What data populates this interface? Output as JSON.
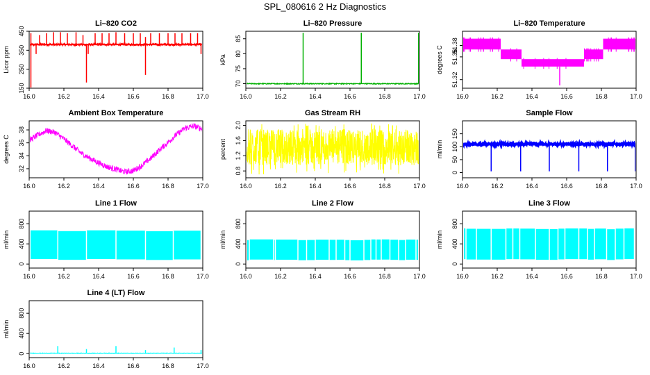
{
  "figure": {
    "title": "SPL_080616  2 Hz Diagnostics"
  },
  "chart_data": [
    {
      "type": "line",
      "title": "Li–820 CO2",
      "ylabel": "Licor ppm",
      "xlim": [
        16.0,
        17.0
      ],
      "ylim": [
        150,
        450
      ],
      "xticks": [
        "16.0",
        "16.2",
        "16.4",
        "16.6",
        "16.8",
        "17.0"
      ],
      "xtick_values": [
        16.0,
        16.2,
        16.4,
        16.6,
        16.8,
        17.0
      ],
      "yticks": [
        "150",
        "250",
        "350",
        "450"
      ],
      "ytick_values": [
        150,
        250,
        350,
        450
      ],
      "series": [
        {
          "color": "#ff0000",
          "baseline": 380,
          "noise": 6,
          "spikes": [
            [
              16.01,
              150
            ],
            [
              16.01,
              440
            ],
            [
              16.04,
              330
            ],
            [
              16.06,
              430
            ],
            [
              16.1,
              440
            ],
            [
              16.14,
              445
            ],
            [
              16.18,
              445
            ],
            [
              16.22,
              440
            ],
            [
              16.27,
              445
            ],
            [
              16.31,
              430
            ],
            [
              16.33,
              180
            ],
            [
              16.34,
              330
            ],
            [
              16.38,
              440
            ],
            [
              16.42,
              440
            ],
            [
              16.46,
              440
            ],
            [
              16.5,
              445
            ],
            [
              16.55,
              440
            ],
            [
              16.6,
              440
            ],
            [
              16.64,
              440
            ],
            [
              16.67,
              420
            ],
            [
              16.67,
              220
            ],
            [
              16.7,
              440
            ],
            [
              16.75,
              440
            ],
            [
              16.8,
              440
            ],
            [
              16.84,
              440
            ],
            [
              16.88,
              440
            ],
            [
              16.93,
              440
            ],
            [
              16.97,
              440
            ],
            [
              16.99,
              330
            ]
          ]
        }
      ]
    },
    {
      "type": "line",
      "title": "Li–820 Pressure",
      "ylabel": "kPa",
      "xlim": [
        16.0,
        17.0
      ],
      "ylim": [
        68.5,
        87.5
      ],
      "xticks": [
        "16.0",
        "16.2",
        "16.4",
        "16.6",
        "16.8",
        "17.0"
      ],
      "xtick_values": [
        16.0,
        16.2,
        16.4,
        16.6,
        16.8,
        17.0
      ],
      "yticks": [
        "70",
        "75",
        "80",
        "85"
      ],
      "ytick_values": [
        70,
        75,
        80,
        85
      ],
      "series": [
        {
          "color": "#00b000",
          "baseline": 70.0,
          "noise": 0.15,
          "spikes": [
            [
              16.0,
              86.0
            ],
            [
              16.33,
              87.0
            ],
            [
              16.665,
              87.0
            ],
            [
              16.665,
              86.5
            ],
            [
              16.995,
              87.0
            ]
          ]
        }
      ]
    },
    {
      "type": "line",
      "title": "Li–820 Temperature",
      "ylabel": "degrees C",
      "xlim": [
        16.0,
        17.0
      ],
      "ylim": [
        51.305,
        51.405
      ],
      "xticks": [
        "16.0",
        "16.2",
        "16.4",
        "16.6",
        "16.8",
        "17.0"
      ],
      "xtick_values": [
        16.0,
        16.2,
        16.4,
        16.6,
        16.8,
        17.0
      ],
      "yticks": [
        "51.32",
        "51.36",
        "51.38"
      ],
      "ytick_values": [
        51.32,
        51.36,
        51.38
      ],
      "series": [
        {
          "color": "#ff00ff",
          "bands": [
            [
              16.0,
              16.22,
              51.373,
              51.392
            ],
            [
              16.22,
              16.34,
              51.356,
              51.373
            ],
            [
              16.34,
              16.7,
              51.343,
              51.356
            ],
            [
              16.7,
              16.81,
              51.356,
              51.373
            ],
            [
              16.81,
              17.0,
              51.373,
              51.392
            ]
          ],
          "spikes": [
            [
              16.56,
              51.31
            ]
          ]
        }
      ]
    },
    {
      "type": "line",
      "title": "Ambient Box Temperature",
      "ylabel": "degrees C",
      "xlim": [
        16.0,
        17.0
      ],
      "ylim": [
        30.6,
        39.4
      ],
      "xticks": [
        "16.0",
        "16.2",
        "16.4",
        "16.6",
        "16.8",
        "17.0"
      ],
      "xtick_values": [
        16.0,
        16.2,
        16.4,
        16.6,
        16.8,
        17.0
      ],
      "yticks": [
        "32",
        "34",
        "36",
        "38"
      ],
      "ytick_values": [
        32,
        34,
        36,
        38
      ],
      "series": [
        {
          "color": "#ff00ff",
          "noise": 0.45,
          "points": [
            [
              16.0,
              36.4
            ],
            [
              16.05,
              37.2
            ],
            [
              16.1,
              37.9
            ],
            [
              16.15,
              37.6
            ],
            [
              16.2,
              36.6
            ],
            [
              16.25,
              35.5
            ],
            [
              16.3,
              34.4
            ],
            [
              16.35,
              33.6
            ],
            [
              16.4,
              32.9
            ],
            [
              16.45,
              32.3
            ],
            [
              16.5,
              31.9
            ],
            [
              16.55,
              31.5
            ],
            [
              16.6,
              31.7
            ],
            [
              16.65,
              32.5
            ],
            [
              16.7,
              33.6
            ],
            [
              16.75,
              34.9
            ],
            [
              16.8,
              36.1
            ],
            [
              16.85,
              37.3
            ],
            [
              16.9,
              38.3
            ],
            [
              16.95,
              38.6
            ],
            [
              17.0,
              38.1
            ]
          ]
        }
      ]
    },
    {
      "type": "line",
      "title": "Gas Stream RH",
      "ylabel": "percent",
      "xlim": [
        16.0,
        17.0
      ],
      "ylim": [
        0.62,
        2.12
      ],
      "xticks": [
        "16.0",
        "16.2",
        "16.4",
        "16.6",
        "16.8",
        "17.0"
      ],
      "xtick_values": [
        16.0,
        16.2,
        16.4,
        16.6,
        16.8,
        17.0
      ],
      "yticks": [
        "0.8",
        "1.2",
        "1.6",
        "2.0"
      ],
      "ytick_values": [
        0.8,
        1.2,
        1.6,
        2.0
      ],
      "series": [
        {
          "color": "#ffff00",
          "noise_band": [
            0.95,
            1.9
          ],
          "extremes": [
            0.7,
            2.05
          ]
        }
      ]
    },
    {
      "type": "line",
      "title": "Sample Flow",
      "ylabel": "ml/min",
      "xlim": [
        16.0,
        17.0
      ],
      "ylim": [
        -20,
        200
      ],
      "xticks": [
        "16.0",
        "16.2",
        "16.4",
        "16.6",
        "16.8",
        "17.0"
      ],
      "xtick_values": [
        16.0,
        16.2,
        16.4,
        16.6,
        16.8,
        17.0
      ],
      "yticks": [
        "0",
        "50",
        "100",
        "150"
      ],
      "ytick_values": [
        0,
        50,
        100,
        150
      ],
      "series": [
        {
          "color": "#0000ff",
          "baseline": 110,
          "noise": 6,
          "spikes": [
            [
              16.0,
              80
            ],
            [
              16.165,
              5
            ],
            [
              16.335,
              5
            ],
            [
              16.5,
              5
            ],
            [
              16.67,
              5
            ],
            [
              16.835,
              5
            ],
            [
              16.995,
              5
            ]
          ]
        }
      ]
    },
    {
      "type": "line",
      "title": "Line 1 Flow",
      "ylabel": "ml/min",
      "xlim": [
        16.0,
        17.0
      ],
      "ylim": [
        -80,
        1050
      ],
      "xticks": [
        "16.0",
        "16.2",
        "16.4",
        "16.6",
        "16.8",
        "17.0"
      ],
      "xtick_values": [
        16.0,
        16.2,
        16.4,
        16.6,
        16.8,
        17.0
      ],
      "yticks": [
        "0",
        "400",
        "800"
      ],
      "ytick_values": [
        0,
        400,
        800
      ],
      "series": [
        {
          "color": "#00ffff",
          "band": [
            90,
            660
          ],
          "gaps": [
            16.165,
            16.33,
            16.5,
            16.67,
            16.83,
            16.99
          ]
        }
      ]
    },
    {
      "type": "line",
      "title": "Line 2 Flow",
      "ylabel": "ml/min",
      "xlim": [
        16.0,
        17.0
      ],
      "ylim": [
        -80,
        1050
      ],
      "xticks": [
        "16.0",
        "16.2",
        "16.4",
        "16.6",
        "16.8",
        "17.0"
      ],
      "xtick_values": [
        16.0,
        16.2,
        16.4,
        16.6,
        16.8,
        17.0
      ],
      "yticks": [
        "0",
        "400",
        "800"
      ],
      "ytick_values": [
        0,
        400,
        800
      ],
      "series": [
        {
          "color": "#00ffff",
          "band": [
            80,
            480
          ],
          "gaps": [
            16.02,
            16.16,
            16.17,
            16.3,
            16.35,
            16.4,
            16.48,
            16.52,
            16.57,
            16.6,
            16.68,
            16.72,
            16.75,
            16.78,
            16.83,
            16.88,
            16.92,
            16.98
          ]
        }
      ]
    },
    {
      "type": "line",
      "title": "Line 3 Flow",
      "ylabel": "ml/min",
      "xlim": [
        16.0,
        17.0
      ],
      "ylim": [
        -80,
        1050
      ],
      "xticks": [
        "16.0",
        "16.2",
        "16.4",
        "16.6",
        "16.8",
        "17.0"
      ],
      "xtick_values": [
        16.0,
        16.2,
        16.4,
        16.6,
        16.8,
        17.0
      ],
      "yticks": [
        "0",
        "400",
        "800"
      ],
      "ytick_values": [
        0,
        400,
        800
      ],
      "series": [
        {
          "color": "#00ffff",
          "band": [
            90,
            700
          ],
          "gaps": [
            16.02,
            16.08,
            16.165,
            16.25,
            16.29,
            16.33,
            16.42,
            16.5,
            16.55,
            16.59,
            16.67,
            16.72,
            16.76,
            16.83,
            16.88,
            16.93,
            16.99
          ]
        }
      ]
    },
    {
      "type": "line",
      "title": "Line 4 (LT) Flow",
      "ylabel": "ml/min",
      "xlim": [
        16.0,
        17.0
      ],
      "ylim": [
        -80,
        1050
      ],
      "xticks": [
        "16.0",
        "16.2",
        "16.4",
        "16.6",
        "16.8",
        "17.0"
      ],
      "xtick_values": [
        16.0,
        16.2,
        16.4,
        16.6,
        16.8,
        17.0
      ],
      "yticks": [
        "0",
        "400",
        "800"
      ],
      "ytick_values": [
        0,
        400,
        800
      ],
      "series": [
        {
          "color": "#00ffff",
          "baseline": 8,
          "noise": 4,
          "spikes": [
            [
              16.165,
              150
            ],
            [
              16.33,
              90
            ],
            [
              16.5,
              150
            ],
            [
              16.67,
              70
            ],
            [
              16.835,
              120
            ],
            [
              16.99,
              70
            ]
          ]
        }
      ]
    }
  ]
}
